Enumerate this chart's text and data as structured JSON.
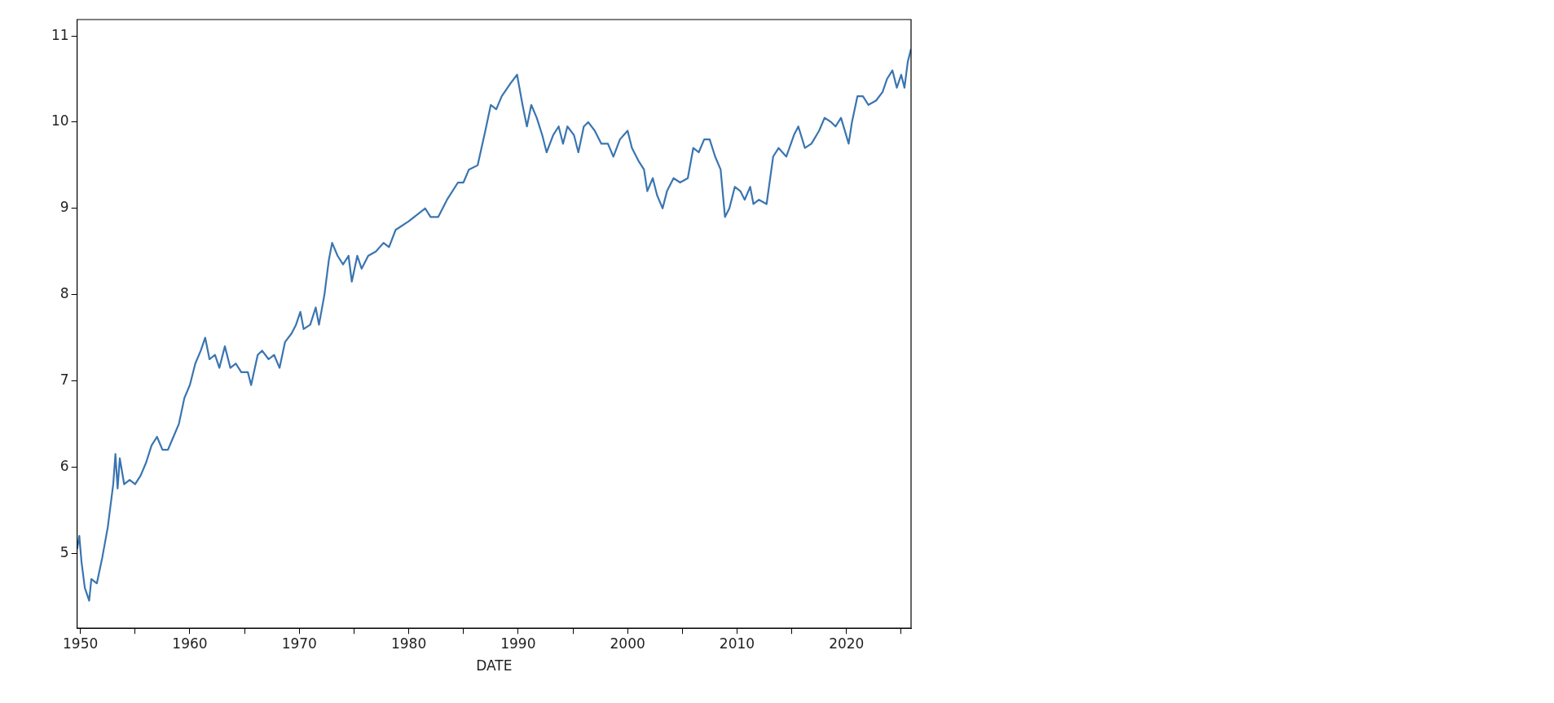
{
  "chart_data": {
    "type": "line",
    "xlabel": "DATE",
    "xlim": [
      1949.7,
      2025.9
    ],
    "ylim": [
      4.13,
      11.19
    ],
    "xticks": [
      1950,
      {
        "value": 1955,
        "label": null
      },
      1960,
      {
        "value": 1965,
        "label": null
      },
      1970,
      {
        "value": 1975,
        "label": null
      },
      1980,
      {
        "value": 1985,
        "label": null
      },
      1990,
      {
        "value": 1995,
        "label": null
      },
      2000,
      {
        "value": 2005,
        "label": null
      },
      2010,
      {
        "value": 2015,
        "label": null
      },
      2020,
      {
        "value": 2025,
        "label": null
      }
    ],
    "yticks": [
      5,
      6,
      7,
      8,
      9,
      10,
      11
    ],
    "grid": false,
    "legend": false,
    "marker": "none",
    "line_style": "solid",
    "series": [
      {
        "color": "#3a75b0",
        "x": [
          1949.7,
          1949.9,
          1950.1,
          1950.4,
          1950.8,
          1951.0,
          1951.5,
          1952,
          1952.5,
          1953,
          1953.2,
          1953.4,
          1953.6,
          1954,
          1954.5,
          1955,
          1955.5,
          1956,
          1956.5,
          1957,
          1957.5,
          1958,
          1958.5,
          1959,
          1959.5,
          1960,
          1960.5,
          1961,
          1961.4,
          1961.8,
          1962.3,
          1962.7,
          1963.2,
          1963.7,
          1964.2,
          1964.7,
          1965.3,
          1965.6,
          1966.2,
          1966.6,
          1967.2,
          1967.7,
          1968.2,
          1968.7,
          1969.3,
          1969.7,
          1970.1,
          1970.4,
          1971,
          1971.5,
          1971.8,
          1972.3,
          1972.7,
          1973.0,
          1973.5,
          1974,
          1974.5,
          1974.8,
          1975.3,
          1975.7,
          1976.3,
          1977,
          1977.7,
          1978.2,
          1978.8,
          1980,
          1981,
          1981.5,
          1982,
          1982.7,
          1983.5,
          1984.5,
          1985,
          1985.5,
          1986.3,
          1987,
          1987.5,
          1988,
          1988.5,
          1989.3,
          1989.9,
          1990.4,
          1990.8,
          1991.2,
          1991.7,
          1992.2,
          1992.6,
          1993.2,
          1993.7,
          1994.1,
          1994.5,
          1995.1,
          1995.5,
          1996.0,
          1996.4,
          1997,
          1997.6,
          1998.2,
          1998.7,
          1999.3,
          2000.0,
          2000.4,
          2001,
          2001.5,
          2001.8,
          2002.3,
          2002.7,
          2003.2,
          2003.6,
          2004.2,
          2004.8,
          2005.5,
          2006.0,
          2006.5,
          2007.0,
          2007.5,
          2008,
          2008.5,
          2008.9,
          2009.3,
          2009.8,
          2010.3,
          2010.7,
          2011.2,
          2011.5,
          2012,
          2012.7,
          2013.3,
          2013.8,
          2014.5,
          2015.2,
          2015.6,
          2016.2,
          2016.8,
          2017.5,
          2018.0,
          2018.6,
          2019,
          2019.5,
          2020.2,
          2020.5,
          2021.0,
          2021.5,
          2022,
          2022.7,
          2023.3,
          2023.7,
          2024.2,
          2024.6,
          2025.0,
          2025.3,
          2025.6,
          2025.9
        ],
        "values": [
          5.05,
          5.2,
          4.9,
          4.6,
          4.45,
          4.7,
          4.65,
          4.95,
          5.3,
          5.8,
          6.15,
          5.75,
          6.1,
          5.8,
          5.85,
          5.8,
          5.9,
          6.05,
          6.25,
          6.35,
          6.2,
          6.2,
          6.35,
          6.5,
          6.8,
          6.95,
          7.2,
          7.35,
          7.5,
          7.25,
          7.3,
          7.15,
          7.4,
          7.15,
          7.2,
          7.1,
          7.1,
          6.95,
          7.3,
          7.35,
          7.25,
          7.3,
          7.15,
          7.45,
          7.55,
          7.65,
          7.8,
          7.6,
          7.65,
          7.85,
          7.65,
          8.0,
          8.4,
          8.6,
          8.45,
          8.35,
          8.45,
          8.15,
          8.45,
          8.3,
          8.45,
          8.5,
          8.6,
          8.55,
          8.75,
          8.85,
          8.95,
          9.0,
          8.9,
          8.9,
          9.1,
          9.3,
          9.3,
          9.45,
          9.5,
          9.9,
          10.2,
          10.15,
          10.3,
          10.45,
          10.55,
          10.2,
          9.95,
          10.2,
          10.05,
          9.85,
          9.65,
          9.85,
          9.95,
          9.75,
          9.95,
          9.85,
          9.65,
          9.95,
          10.0,
          9.9,
          9.75,
          9.75,
          9.6,
          9.8,
          9.9,
          9.7,
          9.55,
          9.45,
          9.2,
          9.35,
          9.15,
          9.0,
          9.2,
          9.35,
          9.3,
          9.35,
          9.7,
          9.65,
          9.8,
          9.8,
          9.6,
          9.45,
          8.9,
          9.0,
          9.25,
          9.2,
          9.1,
          9.25,
          9.05,
          9.1,
          9.05,
          9.6,
          9.7,
          9.6,
          9.85,
          9.95,
          9.7,
          9.75,
          9.9,
          10.05,
          10.0,
          9.95,
          10.05,
          9.75,
          10.0,
          10.3,
          10.3,
          10.2,
          10.25,
          10.35,
          10.5,
          10.6,
          10.4,
          10.55,
          10.4,
          10.7,
          10.85
        ]
      }
    ]
  }
}
